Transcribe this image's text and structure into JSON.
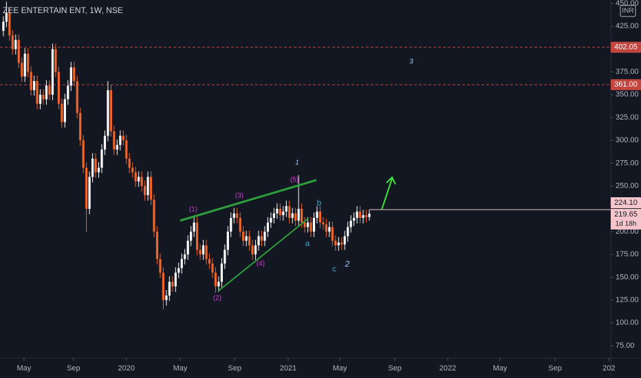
{
  "chart_data": {
    "type": "candlestick",
    "title": "ZEE ENTERTAIN ENT, 1W, NSE",
    "currency": "INR",
    "up_color": "#ffffff",
    "down_color": "#f0652b",
    "open": [
      420,
      430,
      440,
      415,
      400,
      410,
      385,
      370,
      395,
      375,
      355,
      365,
      340,
      350,
      345,
      360,
      350,
      400,
      375,
      340,
      320,
      345,
      360,
      380,
      365,
      330,
      300,
      270,
      225,
      260,
      280,
      265,
      270,
      290,
      305,
      355,
      310,
      290,
      295,
      305,
      300,
      280,
      270,
      265,
      255,
      260,
      250,
      240,
      260,
      235,
      200,
      170,
      155,
      125,
      130,
      145,
      140,
      155,
      160,
      170,
      175,
      190,
      200,
      210,
      180,
      175,
      185,
      170,
      165,
      155,
      140,
      145,
      165,
      180,
      200,
      215,
      220,
      215,
      200,
      190,
      195,
      185,
      175,
      185,
      195,
      190,
      200,
      210,
      215,
      220,
      225,
      218,
      222,
      228,
      215,
      220,
      212,
      225,
      210,
      205,
      210,
      200,
      215,
      222,
      210,
      208,
      200,
      205,
      190,
      185,
      188,
      186,
      195,
      205,
      212,
      215,
      222,
      215,
      218,
      216
    ],
    "high": [
      436,
      452,
      446,
      421,
      416,
      416,
      391,
      401,
      401,
      381,
      371,
      371,
      356,
      356,
      366,
      366,
      406,
      406,
      381,
      346,
      351,
      366,
      386,
      386,
      371,
      336,
      306,
      276,
      266,
      286,
      286,
      276,
      296,
      311,
      365,
      361,
      316,
      301,
      311,
      311,
      306,
      286,
      276,
      271,
      266,
      266,
      256,
      266,
      266,
      241,
      206,
      176,
      161,
      136,
      151,
      151,
      161,
      166,
      176,
      181,
      196,
      206,
      216,
      216,
      186,
      191,
      191,
      176,
      171,
      161,
      151,
      171,
      186,
      206,
      221,
      226,
      226,
      221,
      206,
      201,
      201,
      191,
      191,
      201,
      201,
      206,
      216,
      221,
      226,
      231,
      231,
      228,
      234,
      234,
      226,
      226,
      262,
      231,
      216,
      216,
      216,
      221,
      228,
      228,
      216,
      214,
      211,
      211,
      196,
      194,
      194,
      201,
      211,
      218,
      221,
      228,
      228,
      224,
      224,
      224
    ],
    "low": [
      414,
      424,
      409,
      394,
      394,
      379,
      364,
      364,
      369,
      349,
      349,
      334,
      334,
      339,
      339,
      344,
      344,
      369,
      334,
      314,
      314,
      339,
      354,
      359,
      324,
      294,
      264,
      200,
      219,
      254,
      259,
      259,
      264,
      284,
      299,
      304,
      284,
      284,
      289,
      294,
      274,
      264,
      259,
      249,
      249,
      244,
      234,
      234,
      229,
      194,
      164,
      149,
      115,
      119,
      124,
      134,
      134,
      149,
      154,
      164,
      169,
      184,
      194,
      174,
      169,
      169,
      164,
      159,
      149,
      133,
      134,
      139,
      159,
      174,
      194,
      209,
      209,
      194,
      184,
      184,
      179,
      169,
      169,
      179,
      184,
      184,
      194,
      204,
      209,
      214,
      212,
      212,
      216,
      209,
      209,
      206,
      206,
      204,
      199,
      199,
      194,
      194,
      209,
      204,
      202,
      194,
      194,
      184,
      179,
      179,
      180,
      180,
      189,
      199,
      206,
      209,
      209,
      209,
      210,
      212
    ],
    "close": [
      430,
      440,
      415,
      400,
      410,
      385,
      370,
      395,
      375,
      355,
      365,
      340,
      350,
      345,
      360,
      350,
      400,
      375,
      340,
      320,
      345,
      360,
      380,
      365,
      330,
      300,
      270,
      225,
      260,
      280,
      265,
      270,
      290,
      305,
      355,
      310,
      290,
      295,
      305,
      300,
      280,
      270,
      265,
      255,
      260,
      250,
      240,
      260,
      235,
      200,
      170,
      155,
      125,
      130,
      145,
      140,
      155,
      160,
      170,
      175,
      190,
      200,
      210,
      180,
      175,
      185,
      170,
      165,
      155,
      140,
      145,
      165,
      180,
      200,
      215,
      220,
      215,
      200,
      190,
      195,
      185,
      175,
      185,
      195,
      190,
      200,
      210,
      215,
      220,
      225,
      218,
      222,
      228,
      215,
      220,
      212,
      225,
      210,
      205,
      210,
      200,
      215,
      222,
      210,
      208,
      200,
      205,
      190,
      185,
      188,
      186,
      195,
      205,
      212,
      215,
      222,
      215,
      218,
      216,
      219.65
    ],
    "xlim": [
      -1.1,
      197.5
    ],
    "xticks": [
      {
        "value": 6.7,
        "label": "May"
      },
      {
        "value": 22.8,
        "label": "Sep"
      },
      {
        "value": 40,
        "label": "2020"
      },
      {
        "value": 57.5,
        "label": "May"
      },
      {
        "value": 75.2,
        "label": "Sep"
      },
      {
        "value": 92.6,
        "label": "2021"
      },
      {
        "value": 109.4,
        "label": "May"
      },
      {
        "value": 127.3,
        "label": "Sep"
      },
      {
        "value": 144.5,
        "label": "2022"
      },
      {
        "value": 161.5,
        "label": "May"
      },
      {
        "value": 179.4,
        "label": "Sep"
      },
      {
        "value": 196.9,
        "label": "202"
      }
    ],
    "ylim": [
      62.2,
      453.8
    ],
    "yticks": [
      {
        "value": 450,
        "label": "450.00"
      },
      {
        "value": 425,
        "label": "425.00"
      },
      {
        "value": 375,
        "label": "375.00"
      },
      {
        "value": 350,
        "label": "350.00"
      },
      {
        "value": 325,
        "label": "325.00"
      },
      {
        "value": 300,
        "label": "300.00"
      },
      {
        "value": 275,
        "label": "275.00"
      },
      {
        "value": 250,
        "label": "250.00"
      },
      {
        "value": 200,
        "label": "200.00"
      },
      {
        "value": 175,
        "label": "175.00"
      },
      {
        "value": 150,
        "label": "150.00"
      },
      {
        "value": 125,
        "label": "125.00"
      },
      {
        "value": 100,
        "label": "100.00"
      },
      {
        "value": 75,
        "label": "75.00"
      }
    ],
    "levels": [
      {
        "value": 402.05,
        "label": "402.05"
      },
      {
        "value": 361,
        "label": "361.00"
      }
    ],
    "level_color": "#c2453f",
    "price_line": {
      "value": 224.1,
      "label": "224.10"
    },
    "last_price": {
      "value": 219.65,
      "label": "219.65"
    },
    "countdown": "1d 18h",
    "annotations": [
      "(1)",
      "(2)",
      "(3)",
      "(4)",
      "(5)",
      "1",
      "2",
      "3",
      "a",
      "b",
      "c"
    ]
  }
}
